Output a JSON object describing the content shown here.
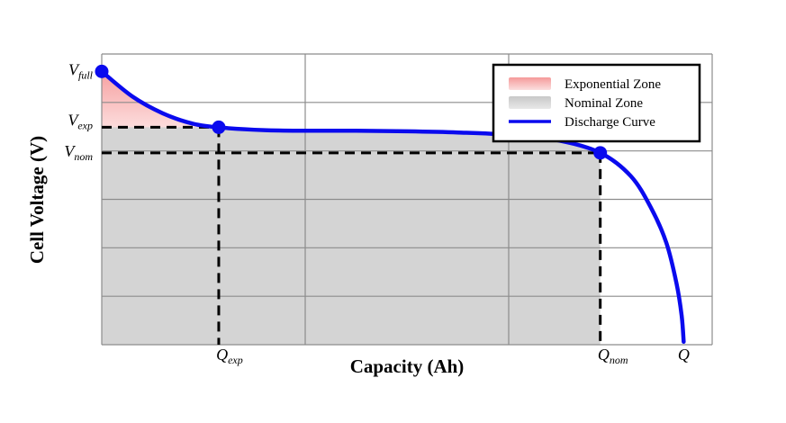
{
  "chart_data": {
    "type": "line",
    "xlabel": "Capacity (Ah)",
    "ylabel": "Cell Voltage (V)",
    "grid": true,
    "legend_position": "top-right",
    "xlim": [
      0,
      6
    ],
    "ylim": [
      0,
      5
    ],
    "series": [
      {
        "name": "Discharge Curve",
        "color": "#0a0aee",
        "x": [
          0,
          0.3,
          0.6,
          0.9,
          1.2,
          1.6,
          2.0,
          2.5,
          3.0,
          3.5,
          4.0,
          4.5,
          4.9,
          5.2,
          5.4,
          5.55,
          5.65,
          5.7,
          5.72
        ],
        "y": [
          4.7,
          4.27,
          3.98,
          3.8,
          3.73,
          3.69,
          3.68,
          3.68,
          3.67,
          3.65,
          3.61,
          3.51,
          3.3,
          2.9,
          2.35,
          1.75,
          1.05,
          0.5,
          0.05
        ]
      }
    ],
    "zones": [
      {
        "name": "Exponential Zone",
        "color": "#f7b0b0",
        "x_range": [
          0,
          1.15
        ]
      },
      {
        "name": "Nominal Zone",
        "color": "#d6d6d6",
        "x_range": [
          0,
          4.9
        ]
      }
    ],
    "key_points": [
      {
        "x_label": "",
        "y_label": "V",
        "y_sub": "full",
        "x": 0,
        "y": 4.7
      },
      {
        "x_label": "Q",
        "x_sub": "exp",
        "y_label": "V",
        "y_sub": "exp",
        "x": 1.15,
        "y": 3.74
      },
      {
        "x_label": "Q",
        "x_sub": "nom",
        "y_label": "V",
        "y_sub": "nom",
        "x": 4.9,
        "y": 3.3
      }
    ],
    "end_label": "Q"
  }
}
